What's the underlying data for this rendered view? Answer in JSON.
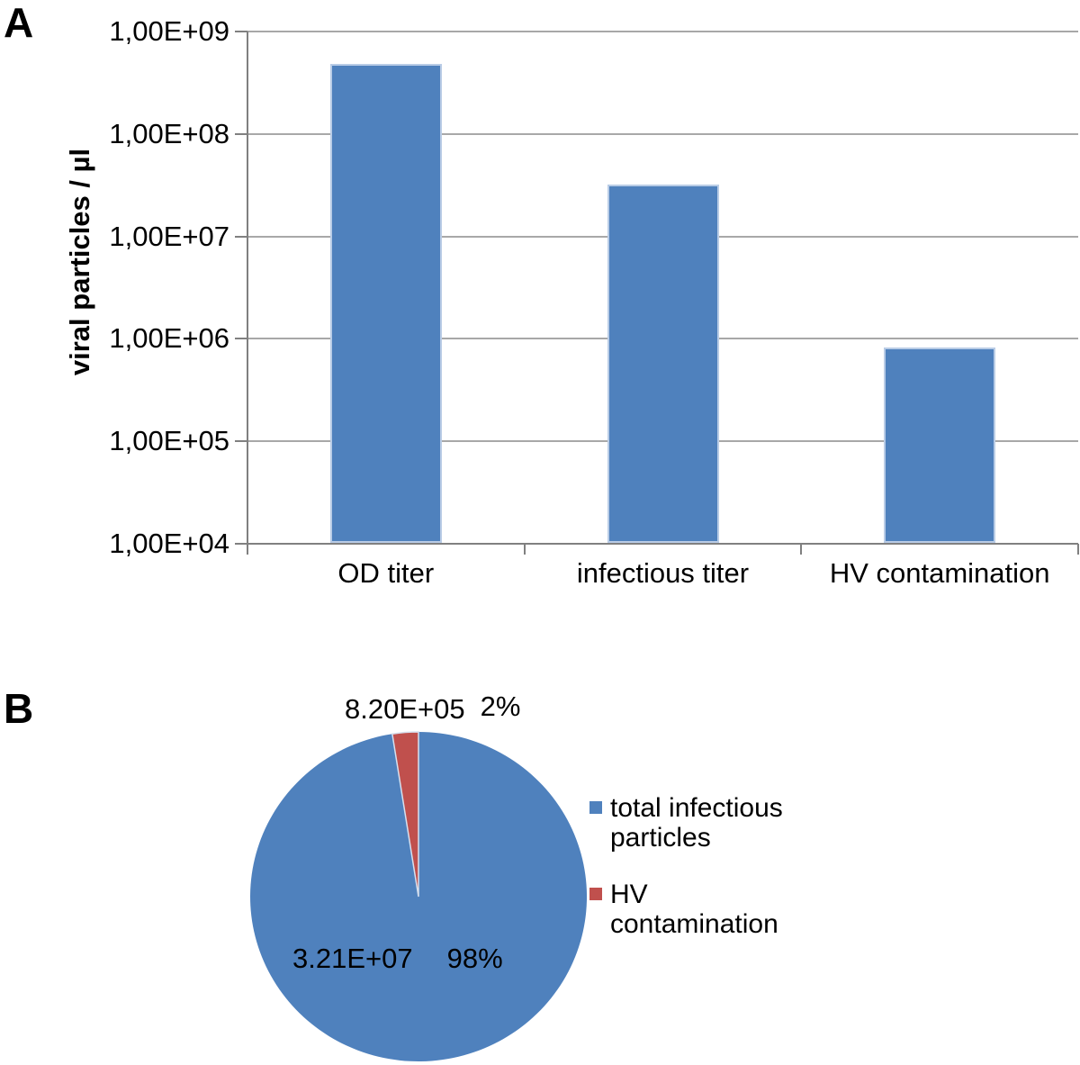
{
  "panels": {
    "a": {
      "label": "A"
    },
    "b": {
      "label": "B"
    }
  },
  "chart_data": [
    {
      "type": "bar",
      "title": "",
      "xlabel": "",
      "ylabel": "viral particles / µl",
      "categories": [
        "OD titer",
        "infectious titer",
        "HV contamination"
      ],
      "values": [
        480000000,
        32100000,
        820000
      ],
      "log_scale": true,
      "ylim": [
        10000,
        1000000000
      ],
      "ytick_values": [
        1000000000,
        100000000,
        10000000,
        1000000,
        100000,
        10000
      ],
      "ytick_labels": [
        "1,00E+09",
        "1,00E+08",
        "1,00E+07",
        "1,00E+06",
        "1,00E+05",
        "1,00E+04"
      ],
      "bar_color": "#4F81BD",
      "bar_border_color": "#b9cce6",
      "gridline_color": "#a8a8a8",
      "axis_color": "#808080",
      "grid": true,
      "legend": "none"
    },
    {
      "type": "pie",
      "title": "",
      "start_angle_deg": 0,
      "direction": "clockwise",
      "legend_position": "right",
      "slices": [
        {
          "name": "total infectious particles",
          "value": 32100000,
          "value_label": "3.21E+07",
          "pct_label": "98%",
          "color": "#4F81BD"
        },
        {
          "name": "HV contamination",
          "value": 820000,
          "value_label": "8.20E+05",
          "pct_label": "2%",
          "color": "#C0504D"
        }
      ],
      "slice_separator_color": "#d7e0ee"
    }
  ]
}
